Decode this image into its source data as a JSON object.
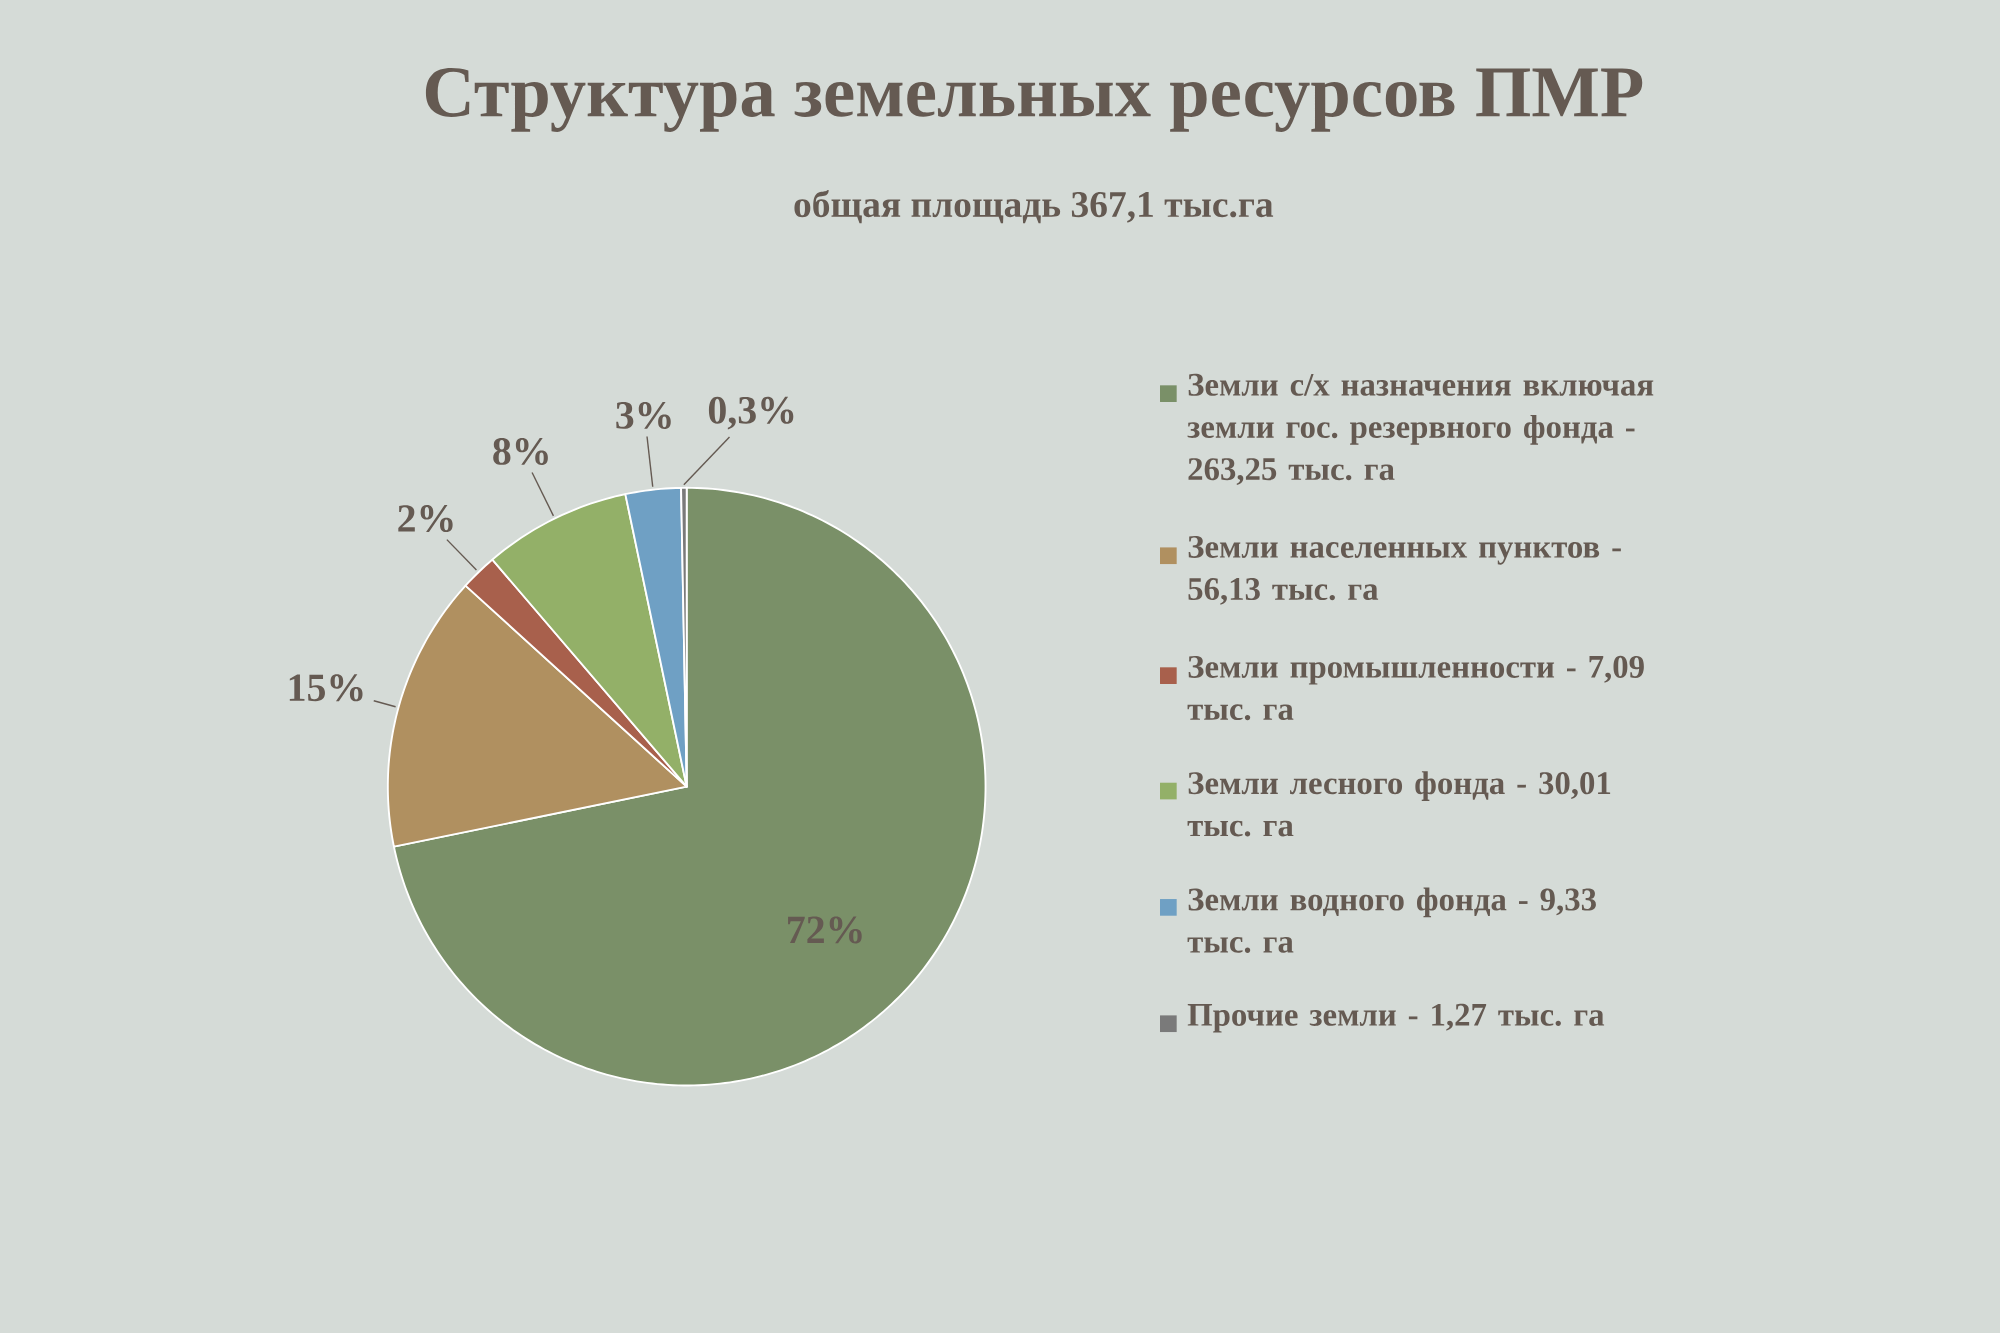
{
  "chart_data": {
    "type": "pie",
    "title": "Структура земельных ресурсов ПМР",
    "subtitle": "общая площадь 367,1 тыс.га",
    "categories": [
      "Земли с/х назначения включая земли гос. резервного фонда - 263,25 тыс. га",
      "Земли населенных пунктов - 56,13 тыс. га",
      "Земли промышленности - 7,09 тыс. га",
      "Земли лесного фонда - 30,01 тыс. га",
      "Земли водного фонда - 9,33 тыс. га",
      "Прочие земли - 1,27 тыс. га"
    ],
    "values": [
      72,
      15,
      2,
      8,
      3,
      0.3
    ],
    "value_labels": [
      "72%",
      "15%",
      "2%",
      "8%",
      "3%",
      "0,3%"
    ],
    "colors": [
      "#7a9068",
      "#b09060",
      "#a8604c",
      "#93b068",
      "#6fa0c4",
      "#7a7a7a"
    ],
    "legend": "right"
  }
}
